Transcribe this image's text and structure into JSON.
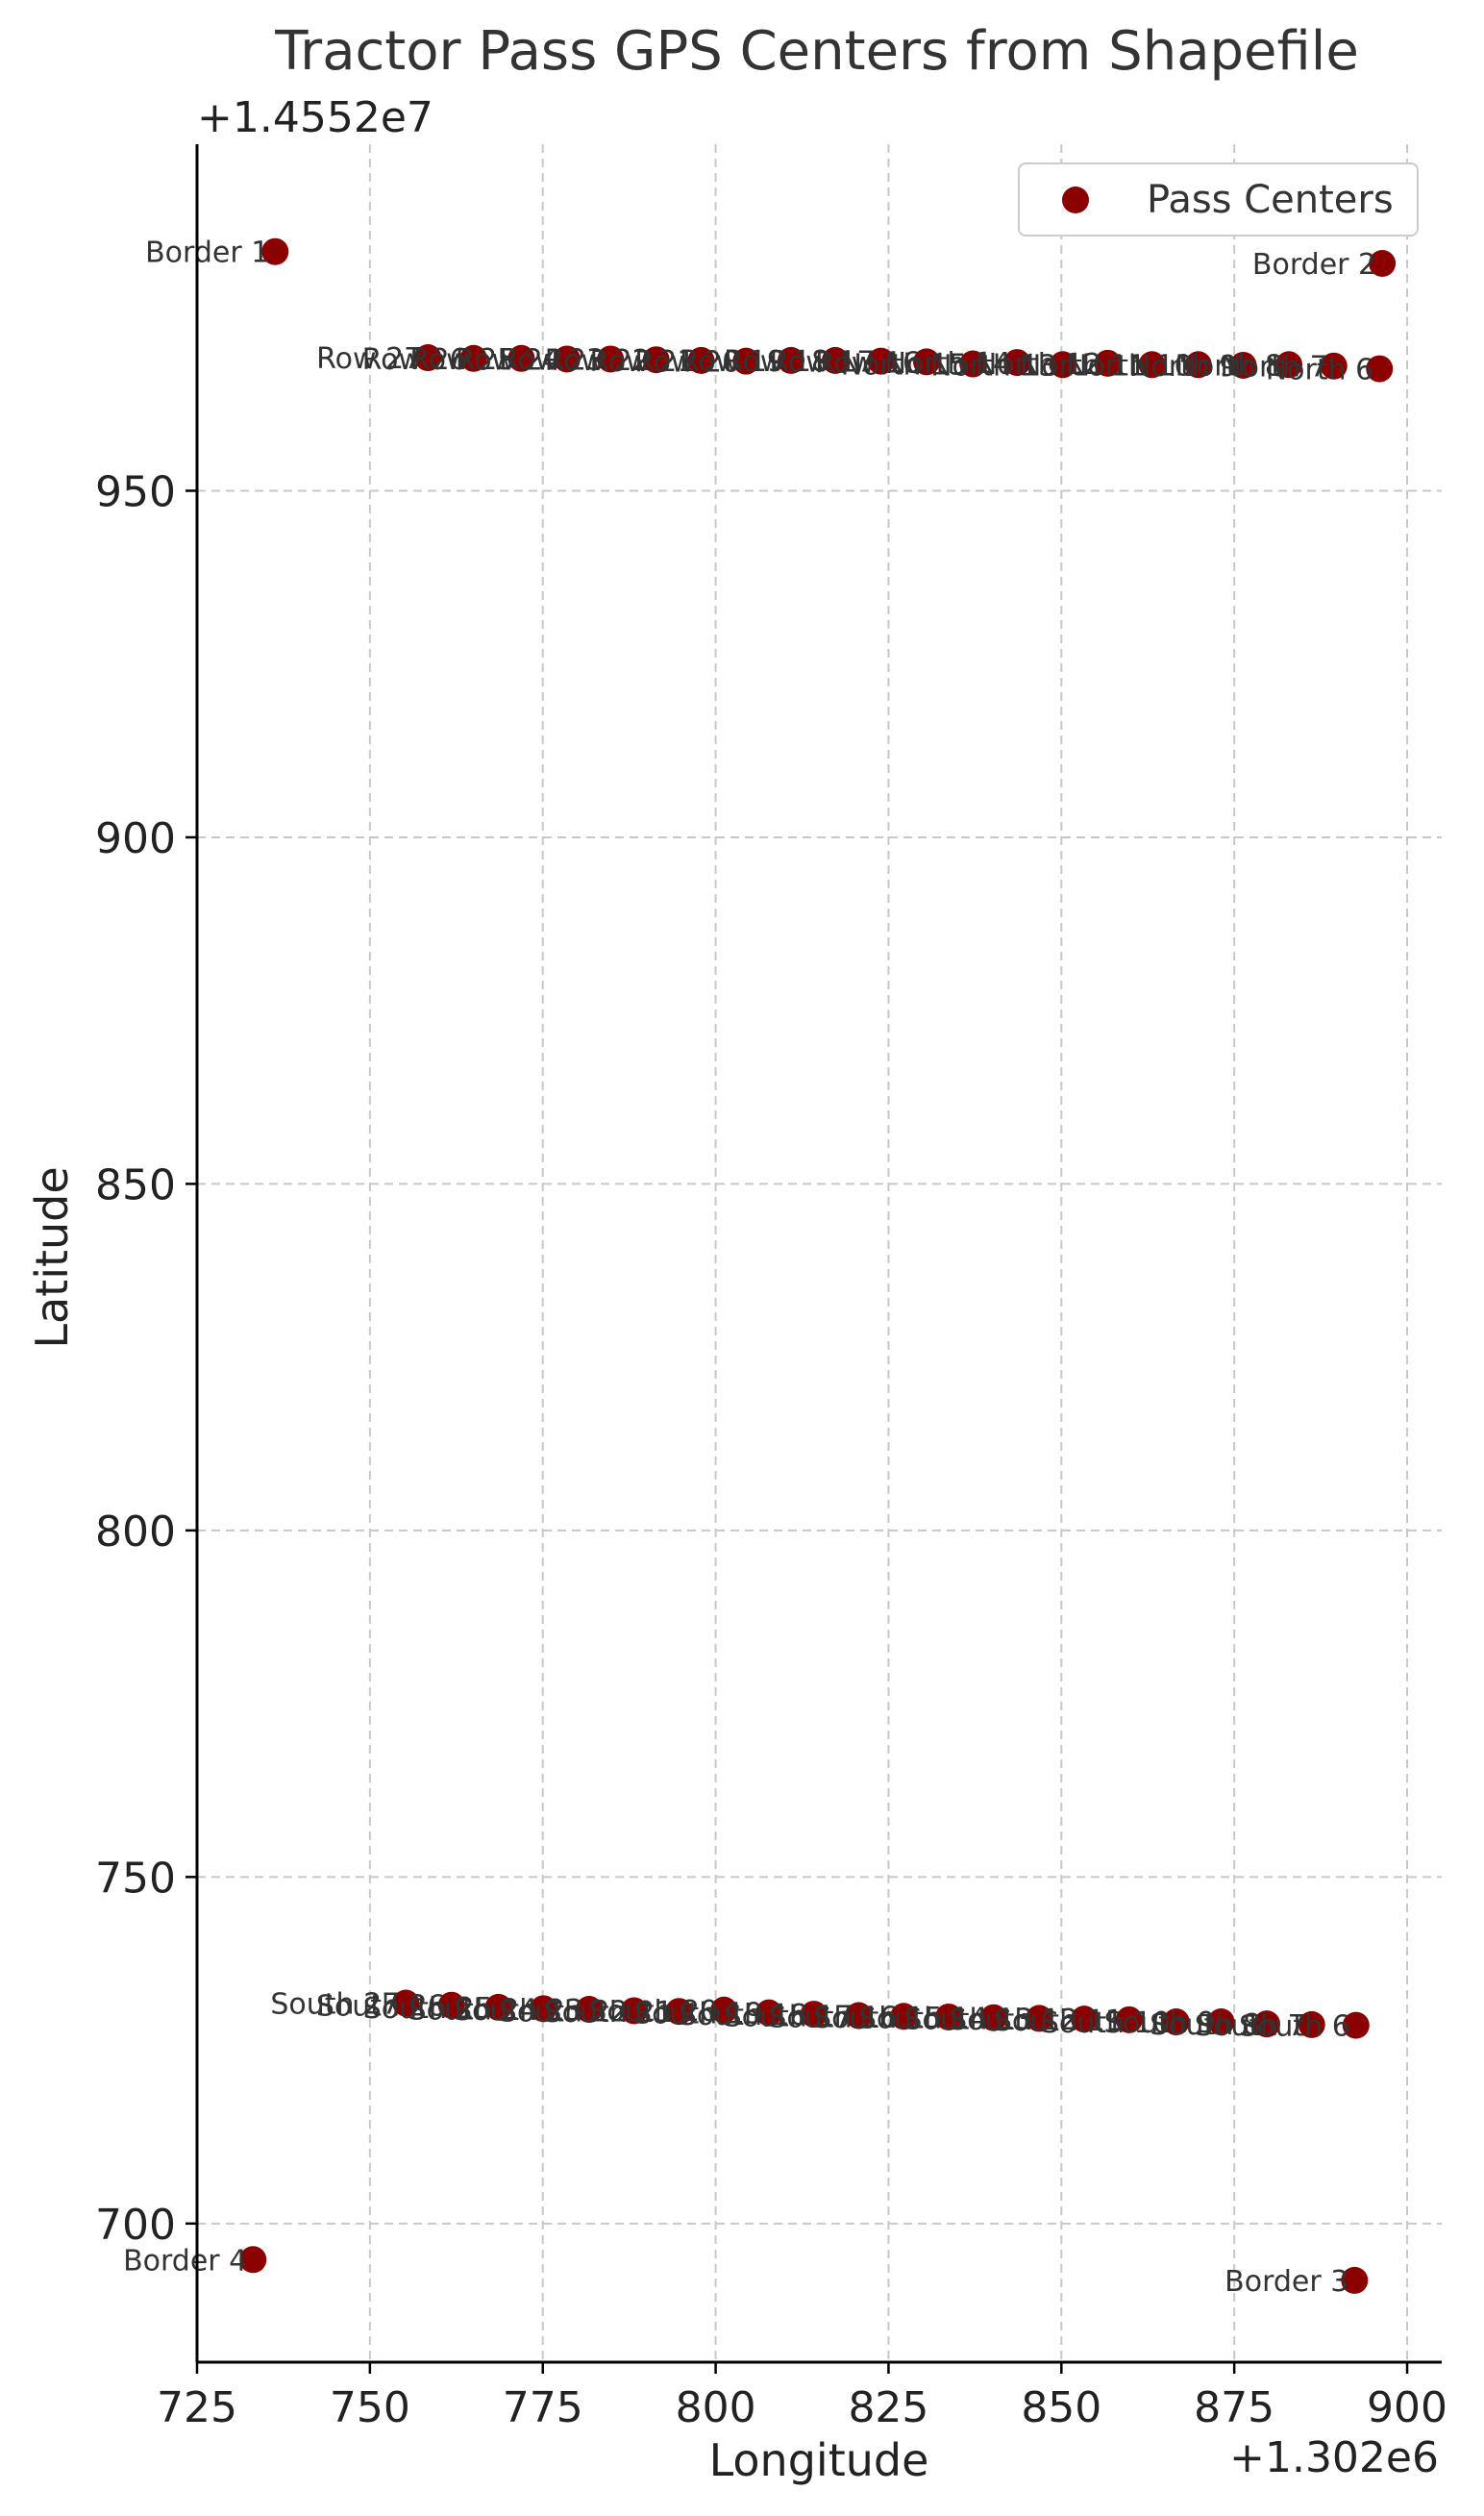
{
  "chart_data": {
    "type": "scatter",
    "title": "Tractor Pass GPS Centers from Shapefile",
    "xlabel": "Longitude",
    "ylabel": "Latitude",
    "x_offset_label": "+1.302e6",
    "y_offset_label": "+1.4552e7",
    "xlim": [
      725,
      905
    ],
    "ylim": [
      680,
      1000
    ],
    "xticks": [
      725,
      750,
      775,
      800,
      825,
      850,
      875,
      900
    ],
    "yticks": [
      700,
      750,
      800,
      850,
      900,
      950
    ],
    "grid": true,
    "legend_position": "top-right",
    "marker_color": "#8b0000",
    "series": [
      {
        "name": "Pass Centers",
        "points": [
          {
            "x": 736.3,
            "y": 984.5,
            "label": "Border 1"
          },
          {
            "x": 896.4,
            "y": 982.8,
            "label": "Border 2"
          },
          {
            "x": 892.4,
            "y": 691.8,
            "label": "Border 3"
          },
          {
            "x": 733.1,
            "y": 694.8,
            "label": "Border 4"
          },
          {
            "x": 758.4,
            "y": 969.2,
            "label": "Row 27"
          },
          {
            "x": 765.0,
            "y": 969.1,
            "label": "Row 26"
          },
          {
            "x": 771.9,
            "y": 969.1,
            "label": "Row 25"
          },
          {
            "x": 778.5,
            "y": 969.0,
            "label": "Row 24"
          },
          {
            "x": 784.8,
            "y": 969.0,
            "label": "Row 23"
          },
          {
            "x": 791.4,
            "y": 968.9,
            "label": "Row 22"
          },
          {
            "x": 797.9,
            "y": 968.8,
            "label": "Row 21"
          },
          {
            "x": 804.4,
            "y": 968.7,
            "label": "Row 20"
          },
          {
            "x": 810.9,
            "y": 968.8,
            "label": "Row 19"
          },
          {
            "x": 817.3,
            "y": 968.8,
            "label": "Row 18"
          },
          {
            "x": 823.9,
            "y": 968.7,
            "label": "Row 17"
          },
          {
            "x": 830.5,
            "y": 968.6,
            "label": "Row 16"
          },
          {
            "x": 837.2,
            "y": 968.3,
            "label": "North 15"
          },
          {
            "x": 843.6,
            "y": 968.5,
            "label": "North 14"
          },
          {
            "x": 850.2,
            "y": 968.2,
            "label": "North 13"
          },
          {
            "x": 856.7,
            "y": 968.4,
            "label": "North 12"
          },
          {
            "x": 863.1,
            "y": 968.2,
            "label": "North 11"
          },
          {
            "x": 869.8,
            "y": 968.2,
            "label": "North 10"
          },
          {
            "x": 876.3,
            "y": 968.1,
            "label": "North 9"
          },
          {
            "x": 882.9,
            "y": 968.2,
            "label": "North 8"
          },
          {
            "x": 889.4,
            "y": 968.0,
            "label": "North 7"
          },
          {
            "x": 896.0,
            "y": 967.6,
            "label": "North 6"
          },
          {
            "x": 755.2,
            "y": 731.8,
            "label": "South 27"
          },
          {
            "x": 761.8,
            "y": 731.5,
            "label": "South 26"
          },
          {
            "x": 768.6,
            "y": 731.2,
            "label": "South 25"
          },
          {
            "x": 775.1,
            "y": 731.0,
            "label": "South 24"
          },
          {
            "x": 781.7,
            "y": 730.9,
            "label": "South 23"
          },
          {
            "x": 788.2,
            "y": 730.7,
            "label": "South 22"
          },
          {
            "x": 794.7,
            "y": 730.6,
            "label": "South 21"
          },
          {
            "x": 801.2,
            "y": 730.8,
            "label": "South 20"
          },
          {
            "x": 807.7,
            "y": 730.4,
            "label": "South 19"
          },
          {
            "x": 814.2,
            "y": 730.2,
            "label": "South 18"
          },
          {
            "x": 820.7,
            "y": 730.0,
            "label": "South 17"
          },
          {
            "x": 827.2,
            "y": 729.9,
            "label": "South 16"
          },
          {
            "x": 833.7,
            "y": 729.8,
            "label": "South 15"
          },
          {
            "x": 840.2,
            "y": 729.7,
            "label": "South 14"
          },
          {
            "x": 846.8,
            "y": 729.6,
            "label": "South 13"
          },
          {
            "x": 853.3,
            "y": 729.5,
            "label": "South 12"
          },
          {
            "x": 859.8,
            "y": 729.4,
            "label": "South 11"
          },
          {
            "x": 866.6,
            "y": 729.1,
            "label": "South 10"
          },
          {
            "x": 873.1,
            "y": 729.1,
            "label": "South 9"
          },
          {
            "x": 879.7,
            "y": 728.8,
            "label": "South 8"
          },
          {
            "x": 886.2,
            "y": 728.7,
            "label": "South 7"
          },
          {
            "x": 892.6,
            "y": 728.6,
            "label": "South 6"
          }
        ]
      }
    ]
  }
}
